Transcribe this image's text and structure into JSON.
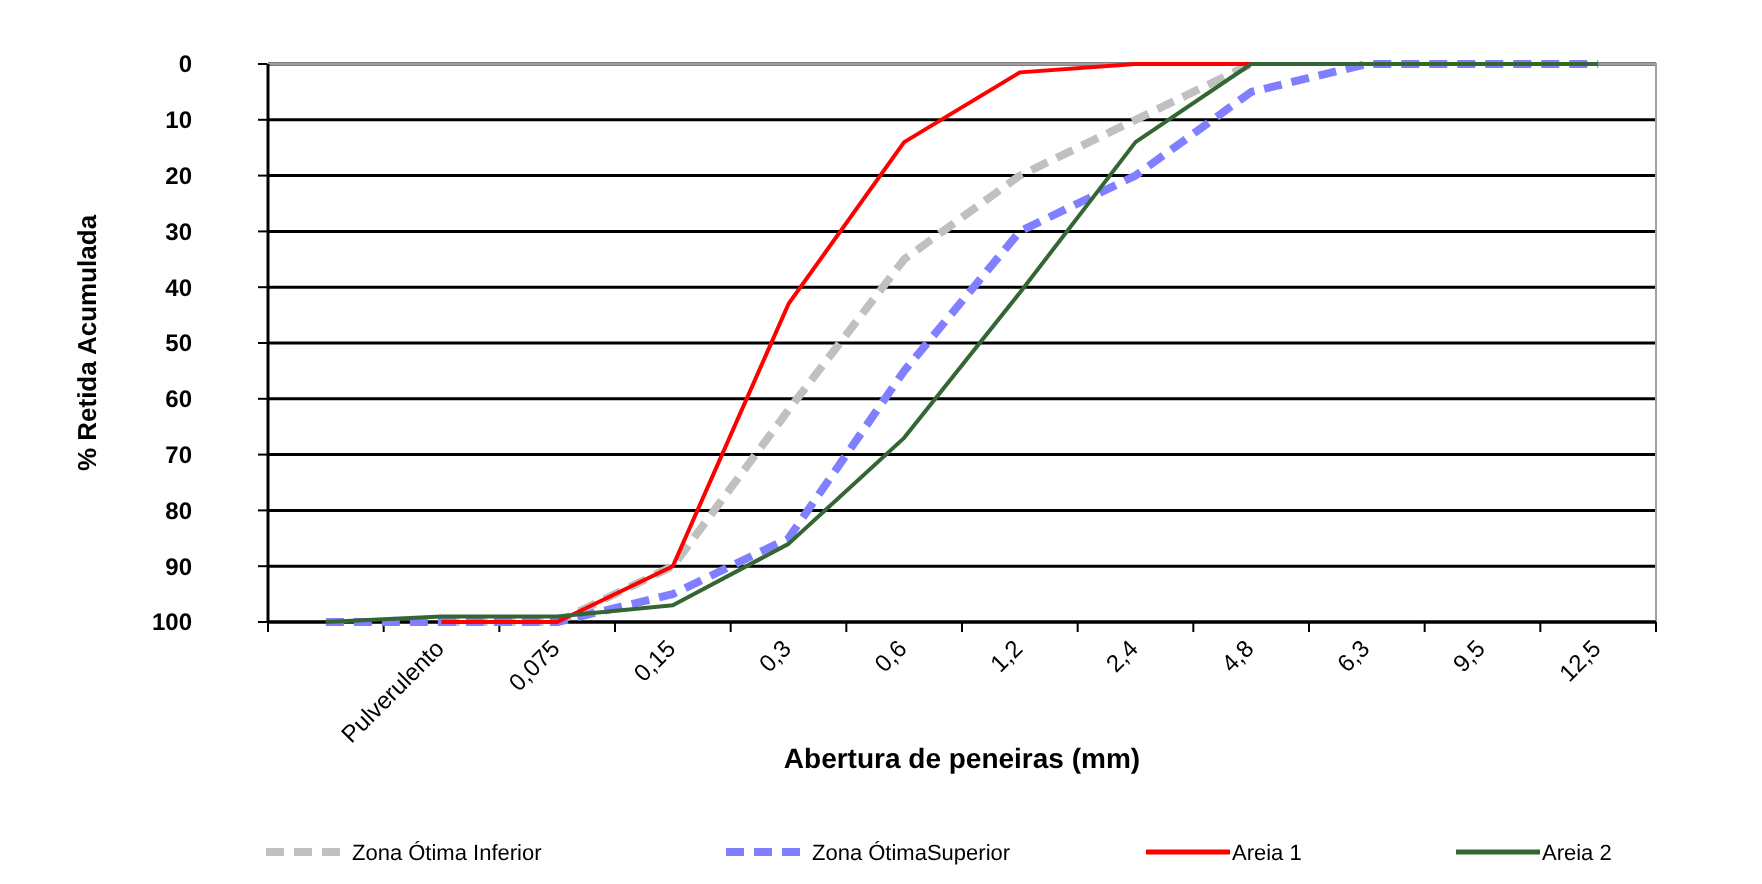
{
  "chart_data": {
    "type": "line",
    "xlabel": "Abertura de peneiras (mm)",
    "ylabel": "% Retida Acumulada",
    "categories": [
      null,
      "Pulverulento",
      "0,075",
      "0,15",
      "0,3",
      "0,6",
      "1,2",
      "2,4",
      "4,8",
      "6,3",
      "9,5",
      "12,5"
    ],
    "ylim": [
      100,
      0
    ],
    "yticks": [
      0,
      10,
      20,
      30,
      40,
      50,
      60,
      70,
      80,
      90,
      100
    ],
    "grid": "y",
    "legend": "bottom",
    "marker": "none",
    "series": [
      {
        "name": "Zona Ótima Inferior",
        "color": "#c0c0c0",
        "line_style": "dashed",
        "values": [
          null,
          100,
          100,
          90,
          62,
          35,
          20,
          10,
          0,
          null,
          null,
          null
        ]
      },
      {
        "name": "Zona ÓtimaSuperior",
        "color": "#7f7fff",
        "line_style": "dashed",
        "values": [
          100,
          100,
          100,
          95,
          85,
          55,
          30,
          20,
          5,
          0,
          0,
          0
        ]
      },
      {
        "name": "Areia 1",
        "color": "#ff0000",
        "line_style": "solid",
        "values": [
          null,
          100,
          100,
          90,
          43,
          14,
          1.5,
          0,
          0,
          null,
          null,
          null
        ]
      },
      {
        "name": "Areia 2",
        "color": "#336633",
        "line_style": "solid",
        "values": [
          100,
          99,
          99,
          97,
          86,
          67,
          41,
          14,
          0,
          0,
          0,
          0
        ]
      }
    ]
  }
}
